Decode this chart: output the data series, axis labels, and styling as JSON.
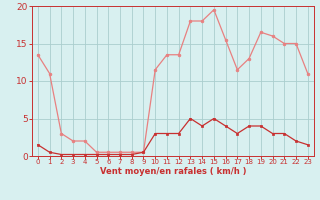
{
  "x": [
    0,
    1,
    2,
    3,
    4,
    5,
    6,
    7,
    8,
    9,
    10,
    11,
    12,
    13,
    14,
    15,
    16,
    17,
    18,
    19,
    20,
    21,
    22,
    23
  ],
  "y_rafales": [
    13.5,
    11,
    3,
    2,
    2,
    0.5,
    0.5,
    0.5,
    0.5,
    0.5,
    11.5,
    13.5,
    13.5,
    18,
    18,
    19.5,
    15.5,
    11.5,
    13,
    16.5,
    16,
    15,
    15,
    11
  ],
  "y_moyen": [
    1.5,
    0.5,
    0.2,
    0.2,
    0.2,
    0.2,
    0.2,
    0.2,
    0.2,
    0.5,
    3,
    3,
    3,
    5,
    4,
    5,
    4,
    3,
    4,
    4,
    3,
    3,
    2,
    1.5
  ],
  "color_rafales": "#e88080",
  "color_moyen": "#c83030",
  "background_color": "#d8f0f0",
  "grid_color": "#aacece",
  "xlabel": "Vent moyen/en rafales ( km/h )",
  "ylim": [
    0,
    20
  ],
  "xlim": [
    -0.5,
    23.5
  ],
  "yticks": [
    0,
    5,
    10,
    15,
    20
  ],
  "xticks": [
    0,
    1,
    2,
    3,
    4,
    5,
    6,
    7,
    8,
    9,
    10,
    11,
    12,
    13,
    14,
    15,
    16,
    17,
    18,
    19,
    20,
    21,
    22,
    23
  ],
  "tick_color": "#c83030",
  "xlabel_fontsize": 6.0,
  "ytick_fontsize": 6.5,
  "xtick_fontsize": 5.0
}
